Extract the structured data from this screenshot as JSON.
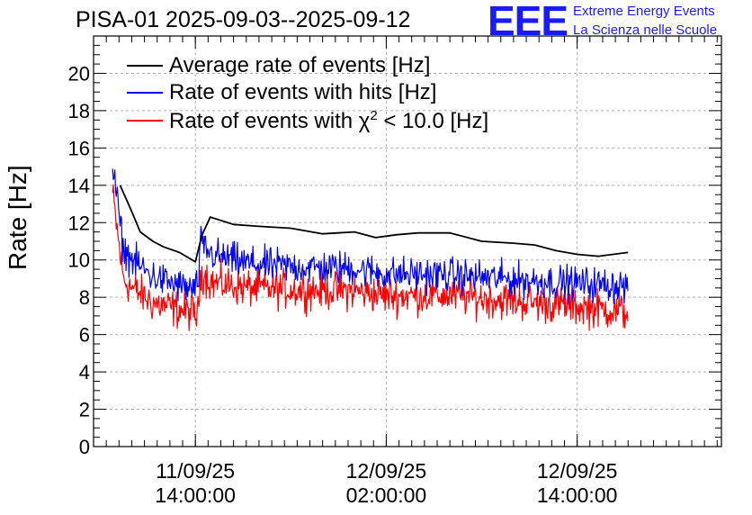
{
  "header": {
    "title": "PISA-01 2025-09-03--2025-09-12",
    "logo_mark": "EEE",
    "logo_line1": "Extreme Energy Events",
    "logo_line2": "La Scienza nelle Scuole"
  },
  "colors": {
    "average": "#000000",
    "hits": "#0000ff",
    "chi2": "#ff0000",
    "logo": "#1a1aff"
  },
  "legend": {
    "average": "Average rate of events [Hz]",
    "hits": "Rate of events with hits [Hz]",
    "chi2_prefix": "Rate of events with ",
    "chi2_symbol": "χ",
    "chi2_exp": "2",
    "chi2_suffix": " < 10.0 [Hz]"
  },
  "chart_data": {
    "type": "line",
    "title": "PISA-01 2025-09-03--2025-09-12",
    "ylabel": "Rate [Hz]",
    "xlabel": "",
    "ylim": [
      0,
      22
    ],
    "yticks": [
      0,
      2,
      4,
      6,
      8,
      10,
      12,
      14,
      16,
      18,
      20
    ],
    "xlim_hours": [
      -9.6,
      49.6
    ],
    "xticks": [
      {
        "hours": 0,
        "line1": "11/09/25",
        "line2": "14:00:00"
      },
      {
        "hours": 18,
        "line1": "12/09/25",
        "line2": "02:00:00"
      },
      {
        "hours": 36,
        "line1": "12/09/25",
        "line2": "14:00:00"
      }
    ],
    "grid": true,
    "series": [
      {
        "name": "Average rate of events [Hz]",
        "color": "#000000",
        "points": [
          [
            -7.1,
            14.0
          ],
          [
            -6.0,
            12.6
          ],
          [
            -5.2,
            11.5
          ],
          [
            -4.0,
            11.0
          ],
          [
            -3.0,
            10.7
          ],
          [
            -1.5,
            10.4
          ],
          [
            0,
            9.9
          ],
          [
            0.6,
            11.3
          ],
          [
            1.4,
            12.3
          ],
          [
            2.5,
            12.1
          ],
          [
            3.6,
            11.9
          ],
          [
            6,
            11.8
          ],
          [
            9,
            11.7
          ],
          [
            12,
            11.4
          ],
          [
            15,
            11.5
          ],
          [
            17,
            11.2
          ],
          [
            19,
            11.35
          ],
          [
            21,
            11.45
          ],
          [
            24,
            11.45
          ],
          [
            27,
            11.0
          ],
          [
            30,
            10.9
          ],
          [
            32,
            10.8
          ],
          [
            34,
            10.5
          ],
          [
            36,
            10.3
          ],
          [
            38,
            10.2
          ],
          [
            40.8,
            10.4
          ]
        ]
      },
      {
        "name": "Rate of events with hits [Hz]",
        "color": "#0000ff",
        "noise": 0.45,
        "baseline": [
          [
            -7.8,
            15.0
          ],
          [
            -7.2,
            12.4
          ],
          [
            -6.8,
            10.6
          ],
          [
            -6.0,
            10.0
          ],
          [
            -4.0,
            9.1
          ],
          [
            -2.0,
            8.7
          ],
          [
            -0.3,
            8.4
          ],
          [
            0.25,
            8.6
          ],
          [
            0.5,
            10.9
          ],
          [
            1.5,
            10.3
          ],
          [
            5,
            9.8
          ],
          [
            10,
            9.6
          ],
          [
            15,
            9.55
          ],
          [
            18,
            9.25
          ],
          [
            24,
            9.2
          ],
          [
            30,
            8.95
          ],
          [
            36,
            8.75
          ],
          [
            40.8,
            8.6
          ]
        ]
      },
      {
        "name": "Rate of events with χ2 < 10.0 [Hz]",
        "color": "#ff0000",
        "noise": 0.5,
        "baseline": [
          [
            -7.8,
            13.5
          ],
          [
            -7.2,
            10.8
          ],
          [
            -6.8,
            9.0
          ],
          [
            -6.0,
            8.5
          ],
          [
            -4.0,
            7.7
          ],
          [
            -2.0,
            7.4
          ],
          [
            -0.3,
            7.2
          ],
          [
            0.25,
            7.0
          ],
          [
            0.5,
            9.4
          ],
          [
            1.5,
            8.8
          ],
          [
            5,
            8.5
          ],
          [
            10,
            8.4
          ],
          [
            15,
            8.35
          ],
          [
            18,
            8.1
          ],
          [
            24,
            8.1
          ],
          [
            30,
            7.8
          ],
          [
            36,
            7.5
          ],
          [
            40.8,
            7.2
          ]
        ]
      }
    ]
  }
}
